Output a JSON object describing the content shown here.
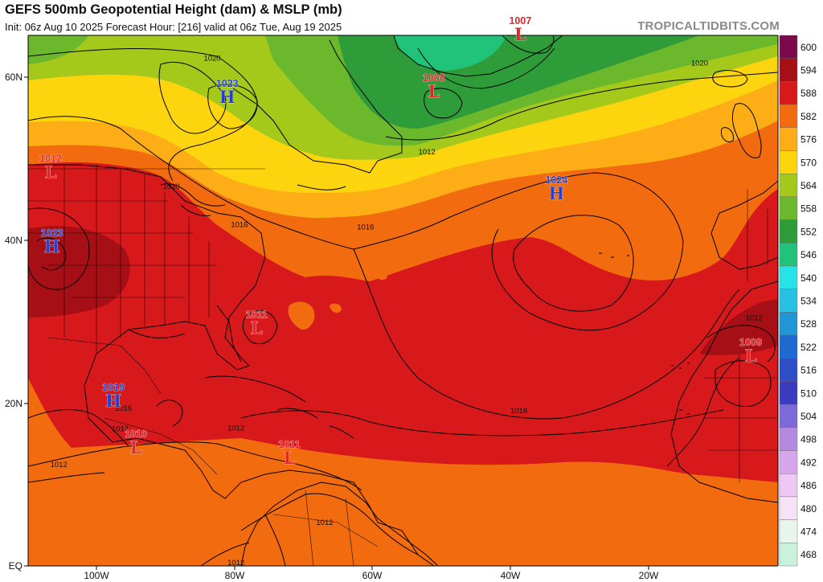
{
  "header": {
    "title": "GEFS 500mb Geopotential Height (dam) & MSLP (mb)",
    "subtitle": "Init: 06z Aug 10 2025   Forecast Hour: [216]   valid at 06z Tue, Aug 19 2025",
    "watermark": "TROPICALTIDBITS.COM"
  },
  "colorbar": {
    "levels": [
      {
        "label": "600",
        "color": "#7a0a4a"
      },
      {
        "label": "594",
        "color": "#a50f15"
      },
      {
        "label": "588",
        "color": "#d7191c"
      },
      {
        "label": "582",
        "color": "#f26b0f"
      },
      {
        "label": "576",
        "color": "#fdae17"
      },
      {
        "label": "570",
        "color": "#fdd50f"
      },
      {
        "label": "564",
        "color": "#a4c91b"
      },
      {
        "label": "558",
        "color": "#6bb82d"
      },
      {
        "label": "552",
        "color": "#2e9c39"
      },
      {
        "label": "546",
        "color": "#21c27a"
      },
      {
        "label": "540",
        "color": "#27e3e8"
      },
      {
        "label": "534",
        "color": "#26c1e3"
      },
      {
        "label": "528",
        "color": "#2196d6"
      },
      {
        "label": "522",
        "color": "#1f6ad0"
      },
      {
        "label": "516",
        "color": "#2e4ec8"
      },
      {
        "label": "510",
        "color": "#3b3bc0"
      },
      {
        "label": "504",
        "color": "#7d6ad6"
      },
      {
        "label": "498",
        "color": "#b38ae0"
      },
      {
        "label": "492",
        "color": "#d7a6ea"
      },
      {
        "label": "486",
        "color": "#eec8f2"
      },
      {
        "label": "480",
        "color": "#f6e2f6"
      },
      {
        "label": "474",
        "color": "#e8f5ea"
      },
      {
        "label": "468",
        "color": "#c8f2dc"
      }
    ]
  },
  "axes": {
    "lat_labels": [
      "60N",
      "40N",
      "20N",
      "EQ"
    ],
    "lon_labels": [
      "100W",
      "80W",
      "60W",
      "40W",
      "20W"
    ]
  },
  "pressure_centers": [
    {
      "type": "H",
      "value": "1023",
      "lon": -80.8,
      "lat": 57.5
    },
    {
      "type": "H",
      "value": "1023",
      "lon": -106.5,
      "lat": 39.2
    },
    {
      "type": "H",
      "value": "1019",
      "lon": -97.5,
      "lat": 20.3
    },
    {
      "type": "H",
      "value": "1024",
      "lon": -32.5,
      "lat": 45.7
    },
    {
      "type": "L",
      "value": "1012",
      "lon": -106.7,
      "lat": 48.3
    },
    {
      "type": "L",
      "value": "1007",
      "lon": -37.8,
      "lat": 65.2
    },
    {
      "type": "L",
      "value": "1008",
      "lon": -50.5,
      "lat": 58.2
    },
    {
      "type": "L",
      "value": "1011",
      "lon": -76.5,
      "lat": 29.2
    },
    {
      "type": "L",
      "value": "1010",
      "lon": -94.2,
      "lat": 14.6
    },
    {
      "type": "L",
      "value": "1011",
      "lon": -71.7,
      "lat": 13.3
    },
    {
      "type": "L",
      "value": "1009",
      "lon": -4.0,
      "lat": 25.8
    }
  ],
  "isobar_labels": [
    {
      "text": "1020",
      "lon": -83.0,
      "lat": 62.2
    },
    {
      "text": "1020",
      "lon": -89.0,
      "lat": 46.5
    },
    {
      "text": "1016",
      "lon": -79.0,
      "lat": 41.8
    },
    {
      "text": "1016",
      "lon": -60.5,
      "lat": 41.5
    },
    {
      "text": "1012",
      "lon": -51.5,
      "lat": 50.7
    },
    {
      "text": "1020",
      "lon": -11.5,
      "lat": 61.6
    },
    {
      "text": "1012",
      "lon": -3.5,
      "lat": 30.4
    },
    {
      "text": "1016",
      "lon": -38.0,
      "lat": 19.0
    },
    {
      "text": "1016",
      "lon": -96.0,
      "lat": 19.3
    },
    {
      "text": "1012",
      "lon": -96.5,
      "lat": 16.8
    },
    {
      "text": "1012",
      "lon": -79.5,
      "lat": 16.9
    },
    {
      "text": "1012",
      "lon": -105.5,
      "lat": 12.4
    },
    {
      "text": "1012",
      "lon": -66.5,
      "lat": 5.3
    },
    {
      "text": "1012",
      "lon": -79.5,
      "lat": 0.4
    }
  ]
}
